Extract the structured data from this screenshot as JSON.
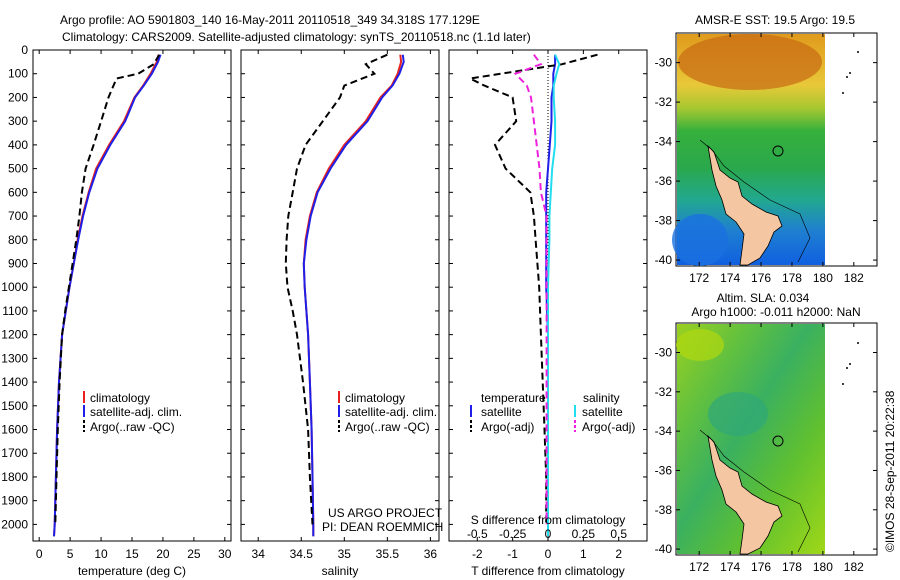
{
  "header": {
    "title1": "Argo profile: AO 5901803_140 16-May-2011 20110518_349 34.318S 177.129E",
    "title2": "Climatology: CARS2009. Satellite-adjusted climatology: synTS_20110518.nc (1.1d later)"
  },
  "side": {
    "stamp": "©IMOS 28-Sep-2011 20:22:38"
  },
  "credit": {
    "line1": "US ARGO PROJECT",
    "line2": "PI: DEAN ROEMMICH"
  },
  "colors": {
    "climatology": "#e8231f",
    "satellite": "#1f1fe8",
    "argo": "#000000",
    "sal_satellite": "#22ddee",
    "sal_argo": "#ee22dd"
  },
  "chart_data": [
    {
      "type": "line",
      "title": "Temperature profile",
      "xlabel": "temperature (deg C)",
      "ylabel": "depth",
      "xlim": [
        -1,
        31
      ],
      "ylim": [
        2070,
        0
      ],
      "xticks": [
        "0",
        "5",
        "10",
        "15",
        "20",
        "25",
        "30"
      ],
      "xtick_values": [
        0,
        5,
        10,
        15,
        20,
        25,
        30
      ],
      "yticks": [
        "0",
        "100",
        "200",
        "300",
        "400",
        "500",
        "600",
        "700",
        "800",
        "900",
        "1000",
        "1100",
        "1200",
        "1300",
        "1400",
        "1500",
        "1600",
        "1700",
        "1800",
        "1900",
        "2000"
      ],
      "ytick_values": [
        0,
        100,
        200,
        300,
        400,
        500,
        600,
        700,
        800,
        900,
        1000,
        1100,
        1200,
        1300,
        1400,
        1500,
        1600,
        1700,
        1800,
        1900,
        2000
      ],
      "legend": [
        "climatology",
        "satellite-adj. clim.",
        "Argo(..raw -QC)"
      ],
      "series": [
        {
          "name": "climatology",
          "style": "solid",
          "x": [
            19.3,
            19.0,
            18.0,
            16.8,
            15.4,
            13.7,
            11.3,
            9.2,
            8.0,
            7.0,
            6.2,
            5.6,
            4.9,
            4.3,
            3.7,
            3.2,
            2.9,
            2.7,
            2.5,
            2.4
          ],
          "y": [
            20,
            50,
            100,
            150,
            200,
            300,
            400,
            500,
            600,
            700,
            800,
            900,
            1000,
            1100,
            1200,
            1400,
            1600,
            1800,
            2000,
            2050
          ]
        },
        {
          "name": "satellite-adj. clim.",
          "style": "solid",
          "x": [
            19.6,
            19.2,
            18.2,
            16.9,
            15.5,
            13.9,
            11.5,
            9.4,
            8.1,
            7.1,
            6.3,
            5.6,
            4.9,
            4.3,
            3.7,
            3.2,
            2.9,
            2.7,
            2.5,
            2.4
          ],
          "y": [
            20,
            50,
            100,
            150,
            200,
            300,
            400,
            500,
            600,
            700,
            800,
            900,
            1000,
            1100,
            1200,
            1400,
            1600,
            1800,
            2000,
            2050
          ]
        },
        {
          "name": "Argo(..raw -QC)",
          "style": "dashed",
          "x": [
            19.4,
            18.5,
            16.0,
            12.5,
            11.2,
            10.0,
            8.8,
            7.5,
            6.9,
            6.5,
            6.0,
            5.4,
            4.8,
            4.2,
            3.7,
            3.3,
            3.0,
            2.8,
            2.6
          ],
          "y": [
            20,
            60,
            100,
            120,
            200,
            300,
            400,
            500,
            600,
            700,
            800,
            900,
            1000,
            1100,
            1200,
            1400,
            1600,
            1800,
            2000
          ]
        }
      ]
    },
    {
      "type": "line",
      "title": "Salinity profile",
      "xlabel": "salinity",
      "ylabel": "depth",
      "xlim": [
        33.8,
        36.1
      ],
      "ylim": [
        2070,
        0
      ],
      "xticks": [
        "34",
        "34.5",
        "35",
        "35.5",
        "36"
      ],
      "xtick_values": [
        34,
        34.5,
        35,
        35.5,
        36
      ],
      "legend": [
        "climatology",
        "satellite-adj. clim.",
        "Argo(..raw -QC)"
      ],
      "series": [
        {
          "name": "climatology",
          "style": "solid",
          "x": [
            35.65,
            35.66,
            35.62,
            35.55,
            35.42,
            35.25,
            35.0,
            34.82,
            34.68,
            34.6,
            34.55,
            34.53,
            34.54,
            34.56,
            34.58,
            34.6,
            34.62,
            34.63,
            34.64,
            34.64
          ],
          "y": [
            20,
            50,
            100,
            150,
            200,
            300,
            400,
            500,
            600,
            700,
            800,
            900,
            1000,
            1100,
            1200,
            1400,
            1600,
            1800,
            2000,
            2050
          ]
        },
        {
          "name": "satellite-adj. clim.",
          "style": "solid",
          "x": [
            35.68,
            35.69,
            35.64,
            35.56,
            35.44,
            35.27,
            35.02,
            34.84,
            34.69,
            34.61,
            34.56,
            34.53,
            34.54,
            34.56,
            34.58,
            34.6,
            34.62,
            34.63,
            34.64,
            34.64
          ],
          "y": [
            20,
            50,
            100,
            150,
            200,
            300,
            400,
            500,
            600,
            700,
            800,
            900,
            1000,
            1100,
            1200,
            1400,
            1600,
            1800,
            2000,
            2050
          ]
        },
        {
          "name": "Argo(..raw -QC)",
          "style": "dashed",
          "x": [
            35.5,
            35.25,
            35.35,
            35.0,
            34.95,
            34.75,
            34.55,
            34.45,
            34.4,
            34.35,
            34.33,
            34.32,
            34.34,
            34.4,
            34.45,
            34.52,
            34.58,
            34.6,
            34.63
          ],
          "y": [
            20,
            60,
            100,
            150,
            200,
            300,
            400,
            500,
            600,
            700,
            800,
            900,
            1000,
            1100,
            1200,
            1400,
            1600,
            1800,
            2000
          ]
        }
      ]
    },
    {
      "type": "line",
      "title": "Differences from climatology",
      "xlabel": "T difference from climatology",
      "xlabel2": "S difference from climatology",
      "xlim": [
        -2.8,
        2.8
      ],
      "ylim": [
        2070,
        0
      ],
      "xticks": [
        "-2",
        "-1",
        "0",
        "1",
        "2"
      ],
      "xtick_values": [
        -2,
        -1,
        0,
        1,
        2
      ],
      "s_xticks": [
        "-0.5",
        "-0.25",
        "0",
        "0.25",
        "0.5"
      ],
      "legend_headers": [
        "temperature",
        "salinity"
      ],
      "legend": [
        "satellite",
        "Argo(-adj)",
        "satellite",
        "Argo(-adj)"
      ],
      "series": [
        {
          "name": "T satellite",
          "style": "solid",
          "x": [
            0.2,
            0.2,
            0.15,
            0.15,
            0.1,
            0.1,
            0.05,
            0.0,
            -0.05,
            -0.05,
            -0.05,
            -0.05,
            -0.05,
            0.0,
            0.0,
            0.0,
            0.0,
            0.0,
            0.0
          ],
          "y": [
            20,
            60,
            100,
            150,
            200,
            300,
            400,
            500,
            600,
            700,
            800,
            900,
            1000,
            1200,
            1400,
            1600,
            1800,
            2000,
            2050
          ]
        },
        {
          "name": "T Argo(-adj)",
          "style": "dashed",
          "x": [
            1.4,
            0.4,
            -2.2,
            -1.8,
            -1.0,
            -0.9,
            -1.5,
            -1.2,
            -0.5,
            -0.4,
            -0.35,
            -0.3,
            -0.25,
            -0.2,
            -0.15,
            -0.1,
            -0.05,
            -0.05
          ],
          "y": [
            20,
            60,
            120,
            150,
            200,
            300,
            400,
            500,
            600,
            700,
            800,
            900,
            1000,
            1200,
            1400,
            1600,
            1800,
            2000
          ]
        },
        {
          "name": "S satellite",
          "style": "solid",
          "x": [
            0.05,
            0.08,
            0.06,
            0.04,
            0.04,
            0.05,
            0.05,
            0.03,
            0.02,
            0.01,
            0.01,
            0.0,
            0.0,
            0.0,
            0.0,
            0.0,
            0.0,
            0.0
          ],
          "y": [
            20,
            60,
            100,
            150,
            200,
            300,
            400,
            500,
            600,
            700,
            800,
            1000,
            1200,
            1400,
            1600,
            1800,
            2000,
            2050
          ]
        },
        {
          "name": "S Argo(-adj)",
          "style": "dashed",
          "x": [
            -0.1,
            -0.05,
            -0.23,
            -0.15,
            -0.12,
            -0.1,
            -0.06,
            -0.05,
            -0.01,
            -0.01,
            -0.01,
            -0.01,
            -0.01,
            -0.01,
            -0.01
          ],
          "y": [
            20,
            60,
            100,
            150,
            200,
            300,
            500,
            600,
            700,
            800,
            1000,
            1200,
            1400,
            1600,
            2000
          ]
        }
      ]
    },
    {
      "type": "heatmap",
      "title": "AMSR-E SST: 19.5 Argo: 19.5",
      "xticks": [
        "172",
        "174",
        "176",
        "178",
        "180",
        "182"
      ],
      "yticks": [
        "-30",
        "-32",
        "-34",
        "-36",
        "-38",
        "-40"
      ],
      "xlim": [
        170.5,
        183.5
      ],
      "ylim": [
        -40.3,
        -28.5
      ]
    },
    {
      "type": "heatmap",
      "title": "Altim. SLA: 0.034",
      "subtitle": "Argo h1000: -0.011 h2000: NaN",
      "xticks": [
        "172",
        "174",
        "176",
        "178",
        "180",
        "182"
      ],
      "yticks": [
        "-30",
        "-32",
        "-34",
        "-36",
        "-38",
        "-40"
      ],
      "xlim": [
        170.5,
        183.5
      ],
      "ylim": [
        -40.3,
        -28.5
      ]
    }
  ]
}
